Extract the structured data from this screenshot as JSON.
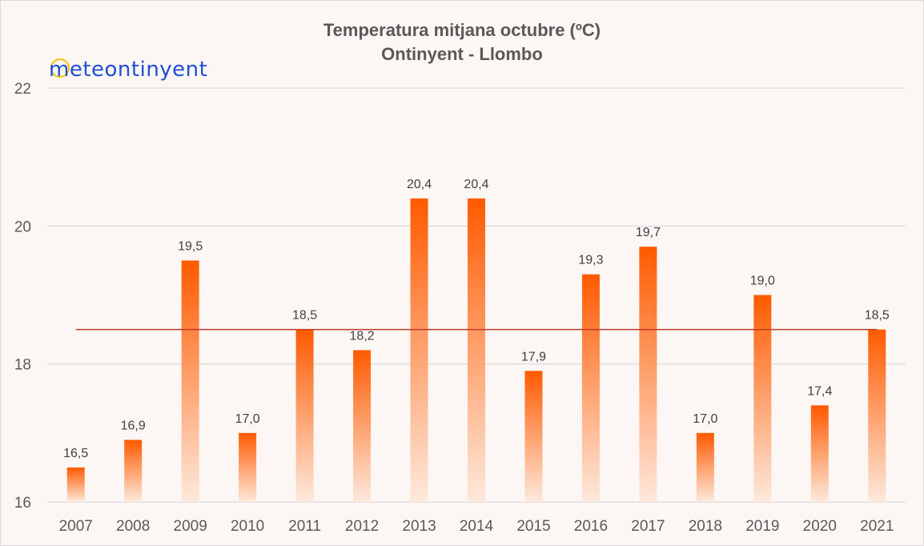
{
  "chart_title": {
    "line1": "Temperatura mitjana octubre (ºC)",
    "line2": "Ontinyent - Llombo"
  },
  "logo": {
    "text": "meteontinyent",
    "ring_color": "#f2c200",
    "text_color": "#1f4fd6"
  },
  "chart_data": {
    "type": "bar",
    "title": "Temperatura mitjana octubre (ºC)",
    "subtitle": "Ontinyent - Llombo",
    "categories": [
      "2007",
      "2008",
      "2009",
      "2010",
      "2011",
      "2012",
      "2013",
      "2014",
      "2015",
      "2016",
      "2017",
      "2018",
      "2019",
      "2020",
      "2021"
    ],
    "values": [
      16.5,
      16.9,
      19.5,
      17.0,
      18.5,
      18.2,
      20.4,
      20.4,
      17.9,
      19.3,
      19.7,
      17.0,
      19.0,
      17.4,
      18.5
    ],
    "value_labels": [
      "16,5",
      "16,9",
      "19,5",
      "17,0",
      "18,5",
      "18,2",
      "20,4",
      "20,4",
      "17,9",
      "19,3",
      "19,7",
      "17,0",
      "19,0",
      "17,4",
      "18,5"
    ],
    "reference_line": 18.5,
    "ylim": [
      16,
      22
    ],
    "yticks": [
      16,
      18,
      20,
      22
    ],
    "ytick_labels": [
      "16",
      "18",
      "20",
      "22"
    ],
    "xlabel": "",
    "ylabel": "",
    "grid": true,
    "colors": {
      "bar_top": "#ff5a00",
      "bar_bottom": "#fde9dc",
      "reference_line": "#c0392b",
      "grid": "#dedede",
      "background": "#fcf7f4"
    }
  }
}
